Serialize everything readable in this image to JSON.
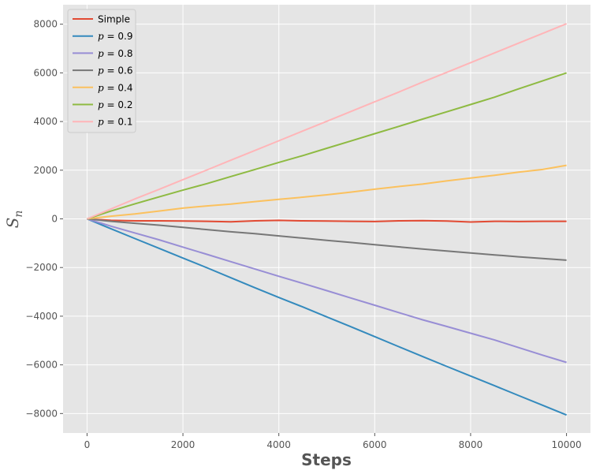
{
  "chart_data": {
    "type": "line",
    "title": "",
    "xlabel": "Steps",
    "ylabel": "S",
    "ylabel_sub": "n",
    "xlim": [
      -500,
      10500
    ],
    "ylim": [
      -8800,
      8800
    ],
    "xticks": [
      0,
      2000,
      4000,
      6000,
      8000,
      10000
    ],
    "yticks": [
      -8000,
      -6000,
      -4000,
      -2000,
      0,
      2000,
      4000,
      6000,
      8000
    ],
    "xtick_labels": [
      "0",
      "2000",
      "4000",
      "6000",
      "8000",
      "10000"
    ],
    "ytick_labels": [
      "−8000",
      "−6000",
      "−4000",
      "−2000",
      "0",
      "2000",
      "4000",
      "6000",
      "8000"
    ],
    "grid": true,
    "legend_position": "top-left",
    "x": [
      0,
      500,
      1000,
      1500,
      2000,
      2500,
      3000,
      3500,
      4000,
      4500,
      5000,
      5500,
      6000,
      6500,
      7000,
      7500,
      8000,
      8500,
      9000,
      9500,
      10000
    ],
    "series": [
      {
        "name": "Simple",
        "label_prefix": "",
        "label_value": "Simple",
        "color": "#E24A33",
        "values": [
          0,
          -60,
          -80,
          -80,
          -90,
          -100,
          -120,
          -80,
          -60,
          -80,
          -90,
          -100,
          -110,
          -80,
          -70,
          -90,
          -130,
          -100,
          -110,
          -100,
          -100
        ]
      },
      {
        "name": "p = 0.9",
        "label_prefix": "p",
        "label_value": " = 0.9",
        "color": "#348ABD",
        "values": [
          0,
          -410,
          -810,
          -1210,
          -1610,
          -2010,
          -2420,
          -2830,
          -3230,
          -3620,
          -4030,
          -4430,
          -4840,
          -5250,
          -5660,
          -6060,
          -6460,
          -6860,
          -7260,
          -7660,
          -8060
        ]
      },
      {
        "name": "p = 0.8",
        "label_prefix": "p",
        "label_value": " = 0.8",
        "color": "#988ED5",
        "values": [
          0,
          -300,
          -580,
          -860,
          -1160,
          -1460,
          -1760,
          -2060,
          -2360,
          -2650,
          -2950,
          -3250,
          -3550,
          -3850,
          -4150,
          -4420,
          -4700,
          -4980,
          -5290,
          -5600,
          -5900
        ]
      },
      {
        "name": "p = 0.6",
        "label_prefix": "p",
        "label_value": " = 0.6",
        "color": "#777777",
        "values": [
          0,
          -100,
          -180,
          -260,
          -350,
          -440,
          -530,
          -610,
          -700,
          -790,
          -880,
          -970,
          -1060,
          -1150,
          -1240,
          -1320,
          -1400,
          -1480,
          -1560,
          -1630,
          -1700
        ]
      },
      {
        "name": "p = 0.4",
        "label_prefix": "p",
        "label_value": " = 0.4",
        "color": "#FBC15E",
        "values": [
          0,
          110,
          200,
          320,
          440,
          530,
          610,
          710,
          800,
          890,
          990,
          1100,
          1220,
          1330,
          1430,
          1560,
          1680,
          1790,
          1920,
          2030,
          2200
        ]
      },
      {
        "name": "p = 0.2",
        "label_prefix": "p",
        "label_value": " = 0.2",
        "color": "#8EBA42",
        "values": [
          0,
          320,
          620,
          900,
          1180,
          1450,
          1740,
          2030,
          2320,
          2600,
          2900,
          3200,
          3500,
          3800,
          4100,
          4400,
          4700,
          5000,
          5340,
          5670,
          6000
        ]
      },
      {
        "name": "p = 0.1",
        "label_prefix": "p",
        "label_value": " = 0.1",
        "color": "#FFB5B8",
        "values": [
          0,
          410,
          820,
          1210,
          1610,
          2010,
          2410,
          2810,
          3210,
          3610,
          4010,
          4410,
          4810,
          5210,
          5620,
          6020,
          6420,
          6820,
          7220,
          7620,
          8020
        ]
      }
    ]
  }
}
